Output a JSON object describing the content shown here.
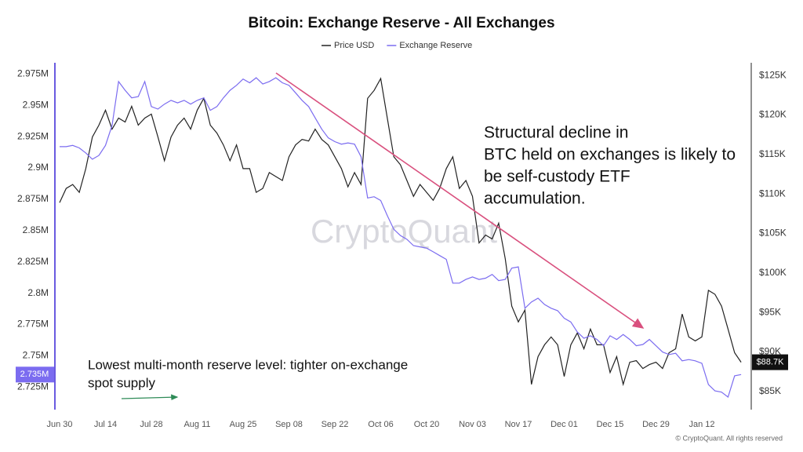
{
  "chart_data": {
    "type": "line",
    "title": "Bitcoin: Exchange Reserve - All Exchanges",
    "watermark": "CryptoQuant",
    "footer": "© CryptoQuant. All rights reserved",
    "categories": [
      "Jun 30",
      null,
      null,
      null,
      null,
      null,
      null,
      "Jul 14",
      null,
      null,
      null,
      null,
      null,
      null,
      "Jul 28",
      null,
      null,
      null,
      null,
      null,
      null,
      "Aug 11",
      null,
      null,
      null,
      null,
      null,
      null,
      "Aug 25",
      null,
      null,
      null,
      null,
      null,
      null,
      "Sep 08",
      null,
      null,
      null,
      null,
      null,
      null,
      "Sep 22",
      null,
      null,
      null,
      null,
      null,
      null,
      "Oct 06",
      null,
      null,
      null,
      null,
      null,
      null,
      "Oct 20",
      null,
      null,
      null,
      null,
      null,
      null,
      "Nov 03",
      null,
      null,
      null,
      null,
      null,
      null,
      "Nov 17",
      null,
      null,
      null,
      null,
      null,
      null,
      "Dec 01",
      null,
      null,
      null,
      null,
      null,
      null,
      "Dec 15",
      null,
      null,
      null,
      null,
      null,
      null,
      "Dec 29",
      null,
      null,
      null,
      null,
      null,
      null,
      "Jan 12",
      null,
      null,
      null,
      null,
      null,
      null
    ],
    "series": [
      {
        "name": "Price USD",
        "color": "#222222",
        "axis": "y2",
        "last_label": "$88.7K",
        "values": [
          108900,
          110700,
          111200,
          110200,
          113200,
          117200,
          118700,
          120600,
          118200,
          119600,
          119100,
          121100,
          118700,
          119600,
          120100,
          117200,
          114200,
          117200,
          118700,
          119600,
          118200,
          120600,
          122100,
          118700,
          117700,
          116200,
          114200,
          116200,
          113200,
          113200,
          110200,
          110700,
          112700,
          112200,
          111700,
          114700,
          116200,
          116900,
          116700,
          118200,
          116900,
          116200,
          114700,
          113200,
          110900,
          112700,
          111200,
          122100,
          123100,
          124600,
          119600,
          114700,
          113700,
          111700,
          109700,
          111200,
          110200,
          109200,
          110700,
          113200,
          114700,
          110700,
          111700,
          109700,
          103800,
          104800,
          104300,
          106300,
          101800,
          95800,
          93800,
          95300,
          85900,
          89400,
          90900,
          91900,
          90900,
          86900,
          90900,
          92400,
          90400,
          92900,
          90900,
          90900,
          87400,
          89400,
          85900,
          88700,
          88900,
          87900,
          88400,
          88700,
          87900,
          89900,
          90400,
          94800,
          91900,
          91400,
          91900,
          97800,
          97300,
          95800,
          92900,
          89900,
          88700
        ]
      },
      {
        "name": "Exchange Reserve",
        "color": "#7b6cf0",
        "axis": "y",
        "last_label": "2.735M",
        "values": [
          2917000,
          2917000,
          2918000,
          2916000,
          2912000,
          2907000,
          2910000,
          2918000,
          2934000,
          2969000,
          2962000,
          2956000,
          2957000,
          2969000,
          2949000,
          2947000,
          2951000,
          2954000,
          2952000,
          2954000,
          2951000,
          2954000,
          2956000,
          2946000,
          2949000,
          2956000,
          2962000,
          2966000,
          2971000,
          2968000,
          2972000,
          2967000,
          2969000,
          2972000,
          2968000,
          2966000,
          2960000,
          2954000,
          2949000,
          2940000,
          2931000,
          2924000,
          2921000,
          2919000,
          2920000,
          2919000,
          2909000,
          2876000,
          2877000,
          2874000,
          2862000,
          2851000,
          2846000,
          2843000,
          2838000,
          2837000,
          2836000,
          2833000,
          2830000,
          2827000,
          2808000,
          2808000,
          2811000,
          2813000,
          2811000,
          2812000,
          2815000,
          2810000,
          2811000,
          2820000,
          2821000,
          2788000,
          2793000,
          2796000,
          2791000,
          2788000,
          2786000,
          2780000,
          2777000,
          2769000,
          2764000,
          2766000,
          2763000,
          2758000,
          2766000,
          2763000,
          2767000,
          2763000,
          2758000,
          2759000,
          2763000,
          2758000,
          2753000,
          2751000,
          2752000,
          2746000,
          2747000,
          2746000,
          2744000,
          2727000,
          2722000,
          2721000,
          2717000,
          2734000,
          2735000
        ]
      }
    ],
    "ylim": [
      2707000,
      2984000
    ],
    "yticks": [
      {
        "value": 2725000,
        "label": "2.725M"
      },
      {
        "value": 2750000,
        "label": "2.75M"
      },
      {
        "value": 2775000,
        "label": "2.775M"
      },
      {
        "value": 2800000,
        "label": "2.8M"
      },
      {
        "value": 2825000,
        "label": "2.825M"
      },
      {
        "value": 2850000,
        "label": "2.85M"
      },
      {
        "value": 2875000,
        "label": "2.875M"
      },
      {
        "value": 2900000,
        "label": "2.9M"
      },
      {
        "value": 2925000,
        "label": "2.925M"
      },
      {
        "value": 2950000,
        "label": "2.95M"
      },
      {
        "value": 2975000,
        "label": "2.975M"
      }
    ],
    "y2lim": [
      82700,
      126600
    ],
    "y2ticks": [
      {
        "value": 85000,
        "label": "$85K"
      },
      {
        "value": 90000,
        "label": "$90K"
      },
      {
        "value": 95000,
        "label": "$95K"
      },
      {
        "value": 100000,
        "label": "$100K"
      },
      {
        "value": 105000,
        "label": "$105K"
      },
      {
        "value": 110000,
        "label": "$110K"
      },
      {
        "value": 115000,
        "label": "$115K"
      },
      {
        "value": 120000,
        "label": "$120K"
      },
      {
        "value": 125000,
        "label": "$125K"
      }
    ],
    "grid": false,
    "annotations": [
      {
        "lines": [
          "Structural decline in",
          "BTC held on exchanges is likely to",
          "be self-custody ETF",
          "accumulation."
        ]
      },
      {
        "lines": [
          "Lowest multi-month reserve level: tighter on-exchange",
          "spot supply"
        ]
      }
    ]
  }
}
